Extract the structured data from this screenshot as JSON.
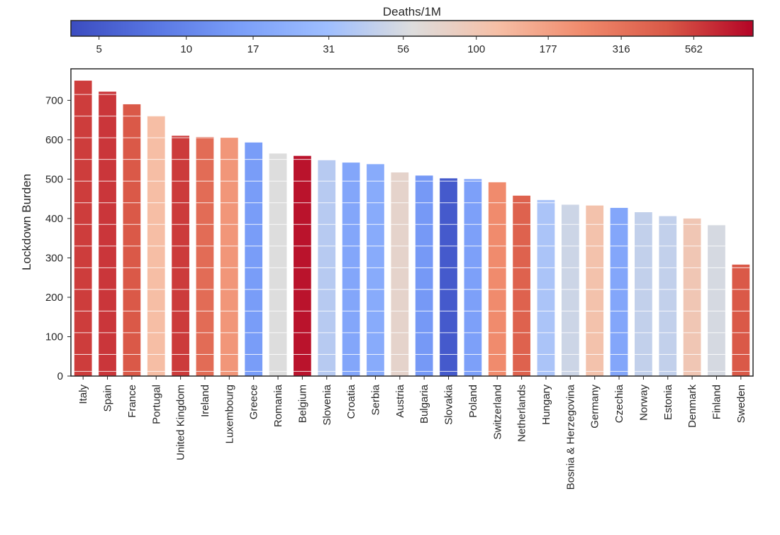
{
  "chart_data": {
    "type": "bar",
    "ylabel": "Lockdown Burden",
    "ylim": [
      0,
      780
    ],
    "yticks": [
      0,
      100,
      200,
      300,
      400,
      500,
      600,
      700
    ],
    "grid": false,
    "categories": [
      "Italy",
      "Spain",
      "France",
      "Portugal",
      "United Kingdom",
      "Ireland",
      "Luxembourg",
      "Greece",
      "Romania",
      "Belgium",
      "Slovenia",
      "Croatia",
      "Serbia",
      "Austria",
      "Bulgaria",
      "Slovakia",
      "Poland",
      "Switzerland",
      "Netherlands",
      "Hungary",
      "Bosnia & Herzegovina",
      "Germany",
      "Czechia",
      "Norway",
      "Estonia",
      "Denmark",
      "Finland",
      "Sweden"
    ],
    "values": [
      750,
      722,
      690,
      661,
      610,
      607,
      605,
      593,
      565,
      559,
      548,
      542,
      538,
      517,
      509,
      502,
      500,
      492,
      458,
      447,
      435,
      433,
      427,
      416,
      406,
      400,
      383,
      283
    ],
    "deaths_per_1m": [
      570,
      600,
      450,
      120,
      580,
      350,
      200,
      15,
      60,
      800,
      40,
      18,
      20,
      75,
      14,
      5,
      16,
      230,
      400,
      35,
      50,
      110,
      18,
      45,
      45,
      100,
      55,
      450
    ],
    "colorbar": {
      "title": "Deaths/1M",
      "scale": "log",
      "range": [
        4,
        900
      ],
      "colormap": "coolwarm",
      "tick_labels": [
        "5",
        "10",
        "17",
        "31",
        "56",
        "100",
        "177",
        "316",
        "562"
      ],
      "tick_values": [
        5,
        10,
        17,
        31,
        56,
        100,
        177,
        316,
        562
      ]
    }
  }
}
